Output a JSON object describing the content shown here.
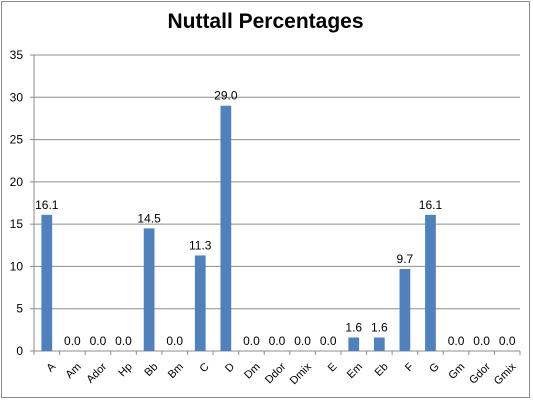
{
  "chart_data": {
    "type": "bar",
    "title": "Nuttall Percentages",
    "xlabel": "",
    "ylabel": "",
    "ylim": [
      0,
      35
    ],
    "yticks": [
      0,
      5,
      10,
      15,
      20,
      25,
      30,
      35
    ],
    "grid": true,
    "legend": "none",
    "bar_color": "#4f81bd",
    "categories": [
      "A",
      "Am",
      "Ador",
      "Hp",
      "Bb",
      "Bm",
      "C",
      "D",
      "Dm",
      "Ddor",
      "Dmix",
      "E",
      "Em",
      "Eb",
      "F",
      "G",
      "Gm",
      "Gdor",
      "Gmix"
    ],
    "values": [
      16.1,
      0.0,
      0.0,
      0.0,
      14.5,
      0.0,
      11.3,
      29.0,
      0.0,
      0.0,
      0.0,
      0.0,
      1.6,
      1.6,
      9.7,
      16.1,
      0.0,
      0.0,
      0.0
    ],
    "data_labels": [
      "16.1",
      "0.0",
      "0.0",
      "0.0",
      "14.5",
      "0.0",
      "11.3",
      "29.0",
      "0.0",
      "0.0",
      "0.0",
      "0.0",
      "1.6",
      "1.6",
      "9.7",
      "16.1",
      "0.0",
      "0.0",
      "0.0"
    ]
  }
}
